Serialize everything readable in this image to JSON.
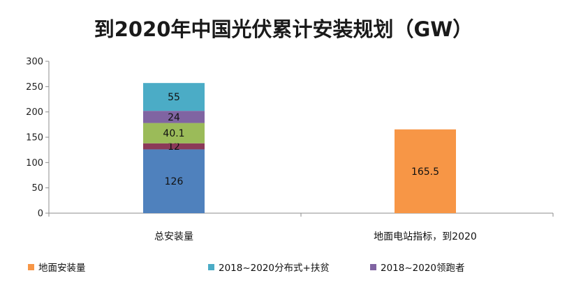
{
  "chart_data": {
    "type": "bar",
    "stacked": true,
    "title": "到2020年中国光伏累计安装规划（GW）",
    "categories": [
      "总安装量",
      "地面电站指标，到2020"
    ],
    "ylim": [
      0,
      300
    ],
    "yticks": [
      0,
      50,
      100,
      150,
      200,
      250,
      300
    ],
    "grid": false,
    "legend_position": "bottom",
    "series": [
      {
        "name": "",
        "color": "#4F81BD",
        "values": [
          126,
          null
        ],
        "labels": [
          "126",
          ""
        ]
      },
      {
        "name": "",
        "color": "#8B3A58",
        "values": [
          12,
          null
        ],
        "labels": [
          "12",
          ""
        ]
      },
      {
        "name": "",
        "color": "#9BBB59",
        "values": [
          40.1,
          null
        ],
        "labels": [
          "40.1",
          ""
        ]
      },
      {
        "name": "2018~2020领跑者",
        "color": "#8064A2",
        "values": [
          24,
          null
        ],
        "labels": [
          "24",
          ""
        ]
      },
      {
        "name": "2018~2020分布式+扶贫",
        "color": "#4BACC6",
        "values": [
          55,
          null
        ],
        "labels": [
          "55",
          ""
        ]
      },
      {
        "name": "地面安装量",
        "color": "#F79646",
        "values": [
          null,
          165.5
        ],
        "labels": [
          "",
          "165.5"
        ]
      }
    ],
    "legend_order": [
      5,
      4,
      3
    ]
  }
}
